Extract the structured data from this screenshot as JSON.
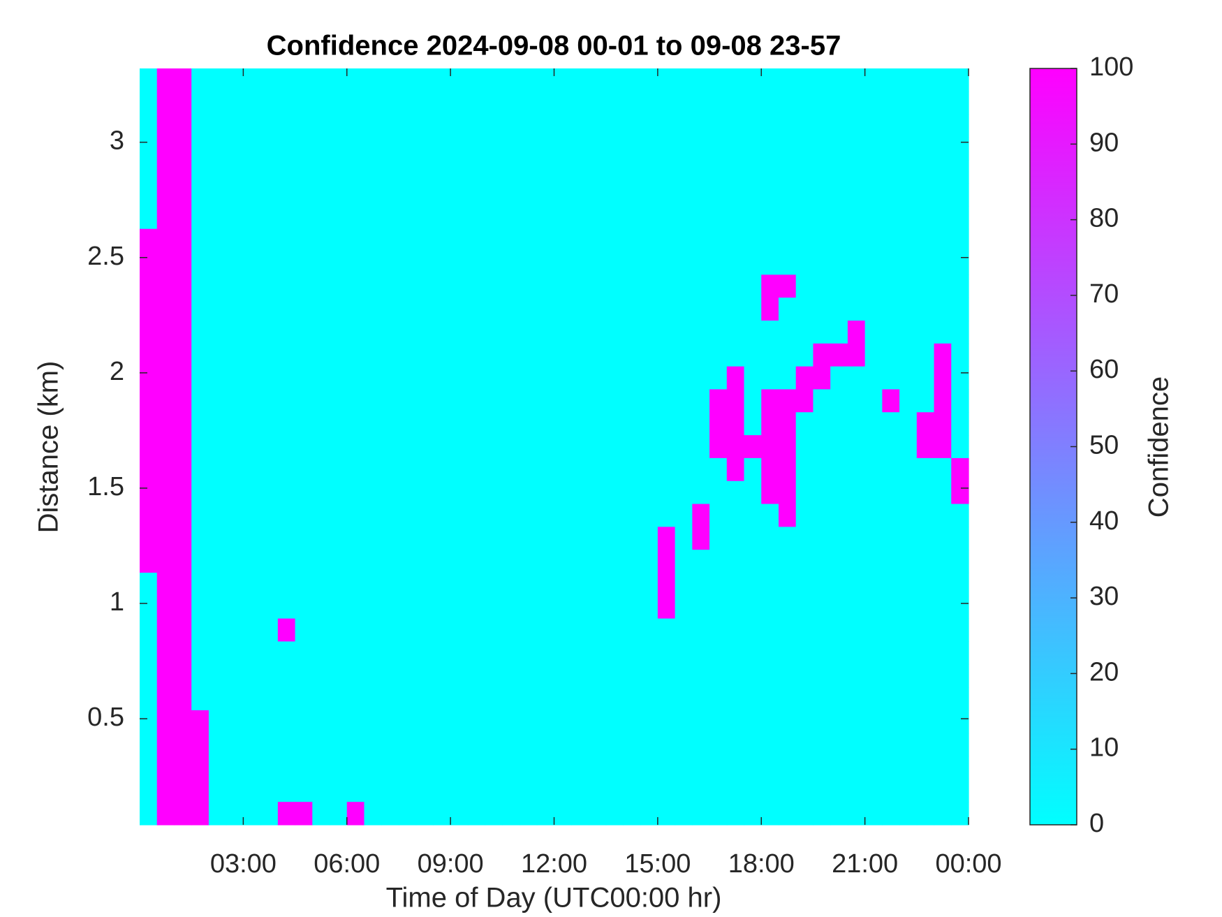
{
  "chart_data": {
    "type": "heatmap",
    "title": "Confidence 2024-09-08 00-01 to 09-08 23-57",
    "x_label": "Time of Day (UTC00:00 hr)",
    "y_label": "Distance (km)",
    "colorbar_label": "Confidence",
    "colormap": [
      "#00ffff",
      "#ff00ff"
    ],
    "xlim": [
      0,
      24
    ],
    "ylim": [
      0.04,
      3.32
    ],
    "clim": [
      0,
      100
    ],
    "xticks": [
      {
        "value": 3,
        "label": "03:00"
      },
      {
        "value": 6,
        "label": "06:00"
      },
      {
        "value": 9,
        "label": "09:00"
      },
      {
        "value": 12,
        "label": "12:00"
      },
      {
        "value": 15,
        "label": "15:00"
      },
      {
        "value": 18,
        "label": "18:00"
      },
      {
        "value": 21,
        "label": "21:00"
      },
      {
        "value": 24,
        "label": "00:00"
      }
    ],
    "yticks": [
      0.5,
      1,
      1.5,
      2,
      2.5,
      3
    ],
    "cticks": [
      0,
      10,
      20,
      30,
      40,
      50,
      60,
      70,
      80,
      90,
      100
    ],
    "values": [
      [
        0,
        100,
        100,
        0,
        0,
        0,
        0,
        0,
        0,
        0,
        0,
        0,
        0,
        0,
        0,
        0,
        0,
        0,
        0,
        0,
        0,
        0,
        0,
        0,
        0,
        0,
        0,
        0,
        0,
        0,
        0,
        0,
        0,
        0,
        0,
        0,
        0,
        0,
        0,
        0,
        0,
        0,
        0,
        0,
        0,
        0,
        0,
        0
      ],
      [
        0,
        100,
        100,
        0,
        0,
        0,
        0,
        0,
        0,
        0,
        0,
        0,
        0,
        0,
        0,
        0,
        0,
        0,
        0,
        0,
        0,
        0,
        0,
        0,
        0,
        0,
        0,
        0,
        0,
        0,
        0,
        0,
        0,
        0,
        0,
        0,
        0,
        0,
        0,
        0,
        0,
        0,
        0,
        0,
        0,
        0,
        0,
        0
      ],
      [
        0,
        100,
        100,
        0,
        0,
        0,
        0,
        0,
        0,
        0,
        0,
        0,
        0,
        0,
        0,
        0,
        0,
        0,
        0,
        0,
        0,
        0,
        0,
        0,
        0,
        0,
        0,
        0,
        0,
        0,
        0,
        0,
        0,
        0,
        0,
        0,
        0,
        0,
        0,
        0,
        0,
        0,
        0,
        0,
        0,
        0,
        0,
        0
      ],
      [
        0,
        100,
        100,
        0,
        0,
        0,
        0,
        0,
        0,
        0,
        0,
        0,
        0,
        0,
        0,
        0,
        0,
        0,
        0,
        0,
        0,
        0,
        0,
        0,
        0,
        0,
        0,
        0,
        0,
        0,
        0,
        0,
        0,
        0,
        0,
        0,
        0,
        0,
        0,
        0,
        0,
        0,
        0,
        0,
        0,
        0,
        0,
        0
      ],
      [
        0,
        100,
        100,
        0,
        0,
        0,
        0,
        0,
        0,
        0,
        0,
        0,
        0,
        0,
        0,
        0,
        0,
        0,
        0,
        0,
        0,
        0,
        0,
        0,
        0,
        0,
        0,
        0,
        0,
        0,
        0,
        0,
        0,
        0,
        0,
        0,
        0,
        0,
        0,
        0,
        0,
        0,
        0,
        0,
        0,
        0,
        0,
        0
      ],
      [
        0,
        100,
        100,
        0,
        0,
        0,
        0,
        0,
        0,
        0,
        0,
        0,
        0,
        0,
        0,
        0,
        0,
        0,
        0,
        0,
        0,
        0,
        0,
        0,
        0,
        0,
        0,
        0,
        0,
        0,
        0,
        0,
        0,
        0,
        0,
        0,
        0,
        0,
        0,
        0,
        0,
        0,
        0,
        0,
        0,
        0,
        0,
        0
      ],
      [
        0,
        100,
        100,
        0,
        0,
        0,
        0,
        0,
        0,
        0,
        0,
        0,
        0,
        0,
        0,
        0,
        0,
        0,
        0,
        0,
        0,
        0,
        0,
        0,
        0,
        0,
        0,
        0,
        0,
        0,
        0,
        0,
        0,
        0,
        0,
        0,
        0,
        0,
        0,
        0,
        0,
        0,
        0,
        0,
        0,
        0,
        0,
        0
      ],
      [
        100,
        100,
        100,
        0,
        0,
        0,
        0,
        0,
        0,
        0,
        0,
        0,
        0,
        0,
        0,
        0,
        0,
        0,
        0,
        0,
        0,
        0,
        0,
        0,
        0,
        0,
        0,
        0,
        0,
        0,
        0,
        0,
        0,
        0,
        0,
        0,
        0,
        0,
        0,
        0,
        0,
        0,
        0,
        0,
        0,
        0,
        0,
        0
      ],
      [
        100,
        100,
        100,
        0,
        0,
        0,
        0,
        0,
        0,
        0,
        0,
        0,
        0,
        0,
        0,
        0,
        0,
        0,
        0,
        0,
        0,
        0,
        0,
        0,
        0,
        0,
        0,
        0,
        0,
        0,
        0,
        0,
        0,
        0,
        0,
        0,
        0,
        0,
        0,
        0,
        0,
        0,
        0,
        0,
        0,
        0,
        0,
        0
      ],
      [
        100,
        100,
        100,
        0,
        0,
        0,
        0,
        0,
        0,
        0,
        0,
        0,
        0,
        0,
        0,
        0,
        0,
        0,
        0,
        0,
        0,
        0,
        0,
        0,
        0,
        0,
        0,
        0,
        0,
        0,
        0,
        0,
        0,
        0,
        0,
        0,
        100,
        100,
        0,
        0,
        0,
        0,
        0,
        0,
        0,
        0,
        0,
        0
      ],
      [
        100,
        100,
        100,
        0,
        0,
        0,
        0,
        0,
        0,
        0,
        0,
        0,
        0,
        0,
        0,
        0,
        0,
        0,
        0,
        0,
        0,
        0,
        0,
        0,
        0,
        0,
        0,
        0,
        0,
        0,
        0,
        0,
        0,
        0,
        0,
        0,
        100,
        0,
        0,
        0,
        0,
        0,
        0,
        0,
        0,
        0,
        0,
        0
      ],
      [
        100,
        100,
        100,
        0,
        0,
        0,
        0,
        0,
        0,
        0,
        0,
        0,
        0,
        0,
        0,
        0,
        0,
        0,
        0,
        0,
        0,
        0,
        0,
        0,
        0,
        0,
        0,
        0,
        0,
        0,
        0,
        0,
        0,
        0,
        0,
        0,
        0,
        0,
        0,
        0,
        0,
        100,
        0,
        0,
        0,
        0,
        0,
        0
      ],
      [
        100,
        100,
        100,
        0,
        0,
        0,
        0,
        0,
        0,
        0,
        0,
        0,
        0,
        0,
        0,
        0,
        0,
        0,
        0,
        0,
        0,
        0,
        0,
        0,
        0,
        0,
        0,
        0,
        0,
        0,
        0,
        0,
        0,
        0,
        0,
        0,
        0,
        0,
        0,
        100,
        100,
        100,
        0,
        0,
        0,
        0,
        100,
        0
      ],
      [
        100,
        100,
        100,
        0,
        0,
        0,
        0,
        0,
        0,
        0,
        0,
        0,
        0,
        0,
        0,
        0,
        0,
        0,
        0,
        0,
        0,
        0,
        0,
        0,
        0,
        0,
        0,
        0,
        0,
        0,
        0,
        0,
        0,
        0,
        100,
        0,
        0,
        0,
        100,
        100,
        0,
        0,
        0,
        0,
        0,
        0,
        100,
        0
      ],
      [
        100,
        100,
        100,
        0,
        0,
        0,
        0,
        0,
        0,
        0,
        0,
        0,
        0,
        0,
        0,
        0,
        0,
        0,
        0,
        0,
        0,
        0,
        0,
        0,
        0,
        0,
        0,
        0,
        0,
        0,
        0,
        0,
        0,
        100,
        100,
        0,
        100,
        100,
        100,
        0,
        0,
        0,
        0,
        100,
        0,
        0,
        100,
        0
      ],
      [
        100,
        100,
        100,
        0,
        0,
        0,
        0,
        0,
        0,
        0,
        0,
        0,
        0,
        0,
        0,
        0,
        0,
        0,
        0,
        0,
        0,
        0,
        0,
        0,
        0,
        0,
        0,
        0,
        0,
        0,
        0,
        0,
        0,
        100,
        100,
        0,
        100,
        100,
        0,
        0,
        0,
        0,
        0,
        0,
        0,
        100,
        100,
        0
      ],
      [
        100,
        100,
        100,
        0,
        0,
        0,
        0,
        0,
        0,
        0,
        0,
        0,
        0,
        0,
        0,
        0,
        0,
        0,
        0,
        0,
        0,
        0,
        0,
        0,
        0,
        0,
        0,
        0,
        0,
        0,
        0,
        0,
        0,
        100,
        100,
        100,
        100,
        100,
        0,
        0,
        0,
        0,
        0,
        0,
        0,
        100,
        100,
        0
      ],
      [
        100,
        100,
        100,
        0,
        0,
        0,
        0,
        0,
        0,
        0,
        0,
        0,
        0,
        0,
        0,
        0,
        0,
        0,
        0,
        0,
        0,
        0,
        0,
        0,
        0,
        0,
        0,
        0,
        0,
        0,
        0,
        0,
        0,
        0,
        100,
        0,
        100,
        100,
        0,
        0,
        0,
        0,
        0,
        0,
        0,
        0,
        0,
        100
      ],
      [
        100,
        100,
        100,
        0,
        0,
        0,
        0,
        0,
        0,
        0,
        0,
        0,
        0,
        0,
        0,
        0,
        0,
        0,
        0,
        0,
        0,
        0,
        0,
        0,
        0,
        0,
        0,
        0,
        0,
        0,
        0,
        0,
        0,
        0,
        0,
        0,
        100,
        100,
        0,
        0,
        0,
        0,
        0,
        0,
        0,
        0,
        0,
        100
      ],
      [
        100,
        100,
        100,
        0,
        0,
        0,
        0,
        0,
        0,
        0,
        0,
        0,
        0,
        0,
        0,
        0,
        0,
        0,
        0,
        0,
        0,
        0,
        0,
        0,
        0,
        0,
        0,
        0,
        0,
        0,
        0,
        0,
        100,
        0,
        0,
        0,
        0,
        100,
        0,
        0,
        0,
        0,
        0,
        0,
        0,
        0,
        0,
        0
      ],
      [
        100,
        100,
        100,
        0,
        0,
        0,
        0,
        0,
        0,
        0,
        0,
        0,
        0,
        0,
        0,
        0,
        0,
        0,
        0,
        0,
        0,
        0,
        0,
        0,
        0,
        0,
        0,
        0,
        0,
        0,
        100,
        0,
        100,
        0,
        0,
        0,
        0,
        0,
        0,
        0,
        0,
        0,
        0,
        0,
        0,
        0,
        0,
        0
      ],
      [
        100,
        100,
        100,
        0,
        0,
        0,
        0,
        0,
        0,
        0,
        0,
        0,
        0,
        0,
        0,
        0,
        0,
        0,
        0,
        0,
        0,
        0,
        0,
        0,
        0,
        0,
        0,
        0,
        0,
        0,
        100,
        0,
        0,
        0,
        0,
        0,
        0,
        0,
        0,
        0,
        0,
        0,
        0,
        0,
        0,
        0,
        0,
        0
      ],
      [
        0,
        100,
        100,
        0,
        0,
        0,
        0,
        0,
        0,
        0,
        0,
        0,
        0,
        0,
        0,
        0,
        0,
        0,
        0,
        0,
        0,
        0,
        0,
        0,
        0,
        0,
        0,
        0,
        0,
        0,
        100,
        0,
        0,
        0,
        0,
        0,
        0,
        0,
        0,
        0,
        0,
        0,
        0,
        0,
        0,
        0,
        0,
        0
      ],
      [
        0,
        100,
        100,
        0,
        0,
        0,
        0,
        0,
        0,
        0,
        0,
        0,
        0,
        0,
        0,
        0,
        0,
        0,
        0,
        0,
        0,
        0,
        0,
        0,
        0,
        0,
        0,
        0,
        0,
        0,
        100,
        0,
        0,
        0,
        0,
        0,
        0,
        0,
        0,
        0,
        0,
        0,
        0,
        0,
        0,
        0,
        0,
        0
      ],
      [
        0,
        100,
        100,
        0,
        0,
        0,
        0,
        0,
        100,
        0,
        0,
        0,
        0,
        0,
        0,
        0,
        0,
        0,
        0,
        0,
        0,
        0,
        0,
        0,
        0,
        0,
        0,
        0,
        0,
        0,
        0,
        0,
        0,
        0,
        0,
        0,
        0,
        0,
        0,
        0,
        0,
        0,
        0,
        0,
        0,
        0,
        0,
        0
      ],
      [
        0,
        100,
        100,
        0,
        0,
        0,
        0,
        0,
        0,
        0,
        0,
        0,
        0,
        0,
        0,
        0,
        0,
        0,
        0,
        0,
        0,
        0,
        0,
        0,
        0,
        0,
        0,
        0,
        0,
        0,
        0,
        0,
        0,
        0,
        0,
        0,
        0,
        0,
        0,
        0,
        0,
        0,
        0,
        0,
        0,
        0,
        0,
        0
      ],
      [
        0,
        100,
        100,
        0,
        0,
        0,
        0,
        0,
        0,
        0,
        0,
        0,
        0,
        0,
        0,
        0,
        0,
        0,
        0,
        0,
        0,
        0,
        0,
        0,
        0,
        0,
        0,
        0,
        0,
        0,
        0,
        0,
        0,
        0,
        0,
        0,
        0,
        0,
        0,
        0,
        0,
        0,
        0,
        0,
        0,
        0,
        0,
        0
      ],
      [
        0,
        100,
        100,
        0,
        0,
        0,
        0,
        0,
        0,
        0,
        0,
        0,
        0,
        0,
        0,
        0,
        0,
        0,
        0,
        0,
        0,
        0,
        0,
        0,
        0,
        0,
        0,
        0,
        0,
        0,
        0,
        0,
        0,
        0,
        0,
        0,
        0,
        0,
        0,
        0,
        0,
        0,
        0,
        0,
        0,
        0,
        0,
        0
      ],
      [
        0,
        100,
        100,
        100,
        0,
        0,
        0,
        0,
        0,
        0,
        0,
        0,
        0,
        0,
        0,
        0,
        0,
        0,
        0,
        0,
        0,
        0,
        0,
        0,
        0,
        0,
        0,
        0,
        0,
        0,
        0,
        0,
        0,
        0,
        0,
        0,
        0,
        0,
        0,
        0,
        0,
        0,
        0,
        0,
        0,
        0,
        0,
        0
      ],
      [
        0,
        100,
        100,
        100,
        0,
        0,
        0,
        0,
        0,
        0,
        0,
        0,
        0,
        0,
        0,
        0,
        0,
        0,
        0,
        0,
        0,
        0,
        0,
        0,
        0,
        0,
        0,
        0,
        0,
        0,
        0,
        0,
        0,
        0,
        0,
        0,
        0,
        0,
        0,
        0,
        0,
        0,
        0,
        0,
        0,
        0,
        0,
        0
      ],
      [
        0,
        100,
        100,
        100,
        0,
        0,
        0,
        0,
        0,
        0,
        0,
        0,
        0,
        0,
        0,
        0,
        0,
        0,
        0,
        0,
        0,
        0,
        0,
        0,
        0,
        0,
        0,
        0,
        0,
        0,
        0,
        0,
        0,
        0,
        0,
        0,
        0,
        0,
        0,
        0,
        0,
        0,
        0,
        0,
        0,
        0,
        0,
        0
      ],
      [
        0,
        100,
        100,
        100,
        0,
        0,
        0,
        0,
        0,
        0,
        0,
        0,
        0,
        0,
        0,
        0,
        0,
        0,
        0,
        0,
        0,
        0,
        0,
        0,
        0,
        0,
        0,
        0,
        0,
        0,
        0,
        0,
        0,
        0,
        0,
        0,
        0,
        0,
        0,
        0,
        0,
        0,
        0,
        0,
        0,
        0,
        0,
        0
      ],
      [
        0,
        100,
        100,
        100,
        0,
        0,
        0,
        0,
        100,
        100,
        0,
        0,
        100,
        0,
        0,
        0,
        0,
        0,
        0,
        0,
        0,
        0,
        0,
        0,
        0,
        0,
        0,
        0,
        0,
        0,
        0,
        0,
        0,
        0,
        0,
        0,
        0,
        0,
        0,
        0,
        0,
        0,
        0,
        0,
        0,
        0,
        0,
        0
      ]
    ]
  }
}
